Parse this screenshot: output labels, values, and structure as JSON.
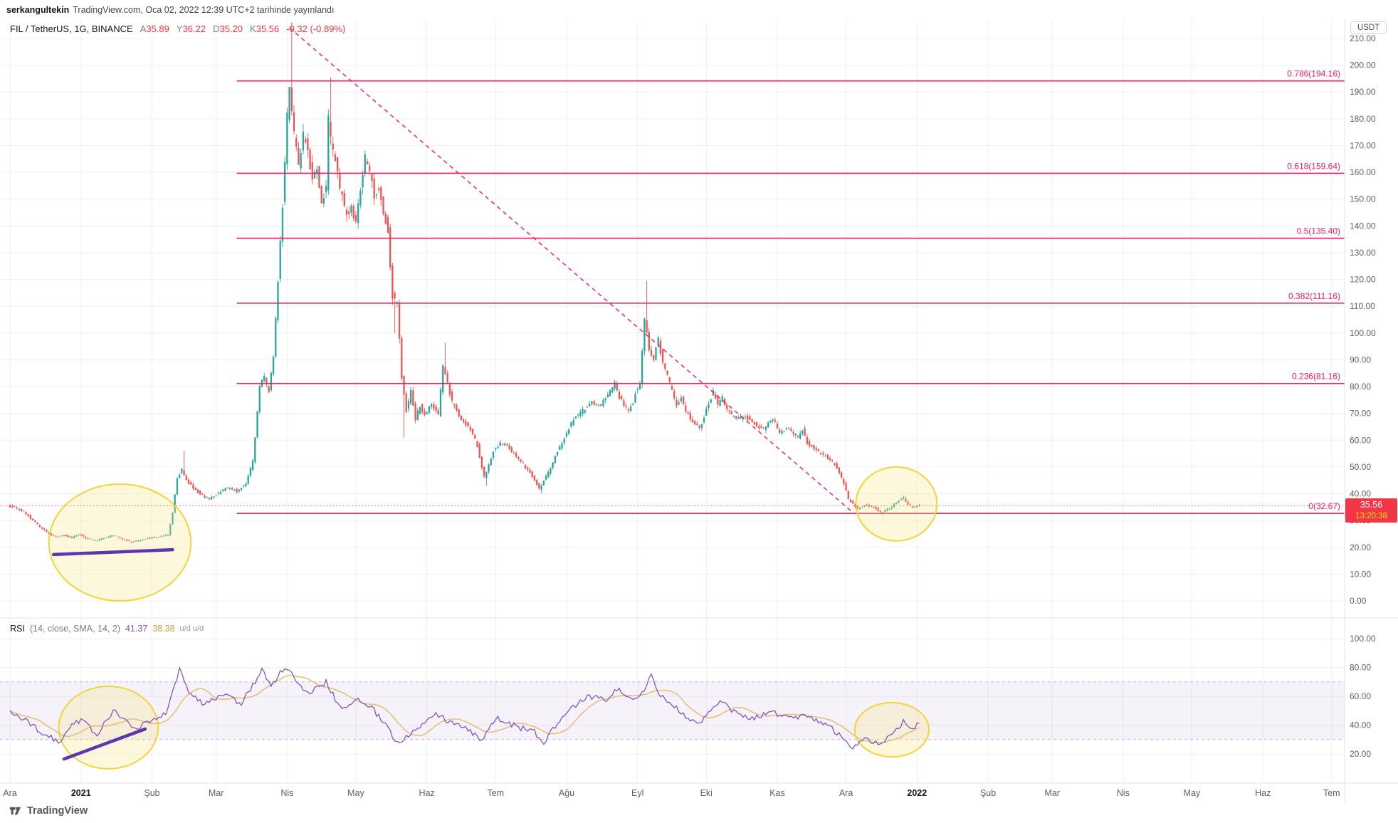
{
  "topbar": {
    "username": "serkangultekin",
    "publish_text": "TradingView.com, Oca 02, 2022 12:39 UTC+2 tarihinde yayınlandı"
  },
  "legend": {
    "symbol_title": "FIL / TetherUS, 1G, BINANCE",
    "o_label": "A",
    "o": "35.89",
    "h_label": "Y",
    "h": "36.22",
    "l_label": "D",
    "l": "35.20",
    "c_label": "K",
    "c": "35.56",
    "change": "-0.32 (-0.89%)"
  },
  "price_axis": {
    "currency_badge": "USDT",
    "last_price": "35.56",
    "countdown": "13:20:38"
  },
  "rsi_legend": {
    "title": "RSI",
    "params": "(14, close, SMA, 14, 2)",
    "value": "41.37",
    "ma_value": "38.38",
    "extra": "u/d  u/d"
  },
  "footer": {
    "brand": "TradingView"
  },
  "colors": {
    "up": "#26a69a",
    "down": "#ef5350",
    "fib": "#e91e63",
    "badge": "#f23645",
    "countdown": "#ffe70a",
    "ellipse_stroke": "#f2d43c",
    "ellipse_fill": "rgba(249,231,130,0.28)",
    "purple": "#5d35ae",
    "rsi_line": "#7e57c2",
    "rsi_ma": "#e5c07b",
    "rsi_band_fill": "rgba(126,87,194,0.08)",
    "rsi_band_line": "rgba(126,87,194,0.45)",
    "grid": "rgba(42,46,57,0.07)",
    "sep": "#e0e3eb",
    "axis_text": "#5d606b",
    "year_text": "#131722"
  },
  "chart_data": {
    "type": "candlestick",
    "title": "FIL / TetherUS, 1G, BINANCE",
    "ylabel": "USDT",
    "ylim": [
      0,
      210
    ],
    "y_tick_step": 10,
    "grid": true,
    "months": [
      {
        "label": "Ara",
        "day": 0
      },
      {
        "label": "2021",
        "day": 31,
        "year": true
      },
      {
        "label": "Şub",
        "day": 62
      },
      {
        "label": "Mar",
        "day": 90
      },
      {
        "label": "Nis",
        "day": 121
      },
      {
        "label": "May",
        "day": 151
      },
      {
        "label": "Haz",
        "day": 182
      },
      {
        "label": "Tem",
        "day": 212
      },
      {
        "label": "Ağu",
        "day": 243
      },
      {
        "label": "Eyl",
        "day": 274
      },
      {
        "label": "Eki",
        "day": 304
      },
      {
        "label": "Kas",
        "day": 335
      },
      {
        "label": "Ara",
        "day": 365
      },
      {
        "label": "2022",
        "day": 396,
        "year": true
      },
      {
        "label": "Şub",
        "day": 427
      },
      {
        "label": "Mar",
        "day": 455
      },
      {
        "label": "Nis",
        "day": 486
      },
      {
        "label": "May",
        "day": 516
      },
      {
        "label": "Haz",
        "day": 547
      },
      {
        "label": "Tem",
        "day": 577
      }
    ],
    "days_total": 397,
    "last_candle": {
      "o": 35.89,
      "h": 36.22,
      "l": 35.2,
      "c": 35.56
    },
    "price_path_anchors": [
      [
        0,
        35.5
      ],
      [
        4,
        34.5
      ],
      [
        7,
        33.5
      ],
      [
        11,
        30
      ],
      [
        15,
        27
      ],
      [
        18,
        25
      ],
      [
        21,
        24
      ],
      [
        25,
        24.5
      ],
      [
        28,
        23.5
      ],
      [
        31,
        25
      ],
      [
        34,
        23.5
      ],
      [
        38,
        22.5
      ],
      [
        42,
        23.5
      ],
      [
        46,
        24.5
      ],
      [
        50,
        23
      ],
      [
        54,
        22
      ],
      [
        58,
        22.8
      ],
      [
        62,
        23.5
      ],
      [
        66,
        24
      ],
      [
        70,
        24.5
      ],
      [
        72,
        33
      ],
      [
        74,
        46
      ],
      [
        76,
        49
      ],
      [
        78,
        45
      ],
      [
        80,
        43
      ],
      [
        84,
        40
      ],
      [
        88,
        38
      ],
      [
        92,
        40
      ],
      [
        96,
        42.5
      ],
      [
        100,
        41
      ],
      [
        104,
        44
      ],
      [
        107,
        52
      ],
      [
        108,
        61
      ],
      [
        110,
        80
      ],
      [
        112,
        84
      ],
      [
        114,
        78
      ],
      [
        116,
        91
      ],
      [
        118,
        120
      ],
      [
        120,
        148
      ],
      [
        122,
        181
      ],
      [
        123,
        192
      ],
      [
        125,
        174
      ],
      [
        127,
        163
      ],
      [
        129,
        174
      ],
      [
        131,
        168
      ],
      [
        133,
        158
      ],
      [
        135,
        161
      ],
      [
        137,
        148
      ],
      [
        139,
        154
      ],
      [
        140,
        180
      ],
      [
        141,
        172
      ],
      [
        143,
        164
      ],
      [
        145,
        154
      ],
      [
        148,
        144
      ],
      [
        150,
        148
      ],
      [
        152,
        141
      ],
      [
        154,
        154
      ],
      [
        156,
        166
      ],
      [
        158,
        161
      ],
      [
        160,
        151
      ],
      [
        162,
        154
      ],
      [
        164,
        146
      ],
      [
        166,
        138
      ],
      [
        168,
        114
      ],
      [
        170,
        111
      ],
      [
        172,
        84
      ],
      [
        174,
        71
      ],
      [
        176,
        78
      ],
      [
        178,
        68
      ],
      [
        180,
        73
      ],
      [
        182,
        69
      ],
      [
        185,
        74
      ],
      [
        188,
        69
      ],
      [
        190,
        88
      ],
      [
        192,
        81
      ],
      [
        194,
        74
      ],
      [
        198,
        68
      ],
      [
        202,
        64
      ],
      [
        205,
        58
      ],
      [
        208,
        46
      ],
      [
        210,
        51
      ],
      [
        212,
        56
      ],
      [
        215,
        59
      ],
      [
        218,
        58
      ],
      [
        220,
        56
      ],
      [
        222,
        54
      ],
      [
        225,
        51
      ],
      [
        228,
        48
      ],
      [
        232,
        42
      ],
      [
        236,
        48
      ],
      [
        239,
        54
      ],
      [
        243,
        61
      ],
      [
        247,
        68
      ],
      [
        251,
        71
      ],
      [
        255,
        74
      ],
      [
        259,
        73
      ],
      [
        263,
        78
      ],
      [
        265,
        81
      ],
      [
        267,
        76
      ],
      [
        271,
        71
      ],
      [
        273,
        74
      ],
      [
        274,
        78
      ],
      [
        276,
        81
      ],
      [
        278,
        105
      ],
      [
        280,
        94
      ],
      [
        282,
        91
      ],
      [
        284,
        98
      ],
      [
        286,
        88
      ],
      [
        288,
        84
      ],
      [
        290,
        78
      ],
      [
        292,
        73
      ],
      [
        294,
        76
      ],
      [
        296,
        71
      ],
      [
        298,
        68
      ],
      [
        302,
        64
      ],
      [
        304,
        69
      ],
      [
        306,
        74
      ],
      [
        308,
        78
      ],
      [
        310,
        73
      ],
      [
        312,
        76
      ],
      [
        314,
        71
      ],
      [
        318,
        68
      ],
      [
        322,
        69
      ],
      [
        326,
        66
      ],
      [
        330,
        64
      ],
      [
        334,
        68
      ],
      [
        337,
        63
      ],
      [
        341,
        64
      ],
      [
        345,
        61
      ],
      [
        347,
        64
      ],
      [
        349,
        59
      ],
      [
        353,
        56
      ],
      [
        357,
        54
      ],
      [
        361,
        51
      ],
      [
        365,
        44
      ],
      [
        367,
        38
      ],
      [
        369,
        36
      ],
      [
        371,
        34.5
      ],
      [
        375,
        36
      ],
      [
        379,
        34.5
      ],
      [
        381,
        33
      ],
      [
        385,
        34.5
      ],
      [
        389,
        37.5
      ],
      [
        391,
        38.5
      ],
      [
        393,
        36
      ],
      [
        395,
        35
      ],
      [
        397,
        35.56
      ]
    ],
    "wick_high_overrides": {
      "76": 56,
      "123": 216,
      "140": 195.5,
      "190": 96.5,
      "278": 119.5
    },
    "wick_low_overrides": {
      "168": 100,
      "172": 61,
      "208": 43,
      "232": 40.2,
      "381": 31.8
    },
    "fib_start_day": 99,
    "fib_levels": [
      {
        "label": "0.786(194.16)",
        "price": 194.16
      },
      {
        "label": "0.618(159.64)",
        "price": 159.64
      },
      {
        "label": "0.5(135.40)",
        "price": 135.4
      },
      {
        "label": "0.382(111.16)",
        "price": 111.16
      },
      {
        "label": "0.236(81.16)",
        "price": 81.16
      },
      {
        "label": "0(32.67)",
        "price": 32.67
      }
    ],
    "trend_dashed": {
      "from": {
        "day": 122,
        "price": 214
      },
      "to": {
        "day": 368,
        "price": 33
      }
    },
    "ellipses": [
      {
        "pane": "price",
        "day": 48,
        "center": 21.8,
        "rx_days": 31,
        "ry_val": 21.8
      },
      {
        "pane": "price",
        "day": 387,
        "center": 36.2,
        "rx_days": 17.7,
        "ry_val": 13.8
      },
      {
        "pane": "rsi",
        "day": 43,
        "center": 38.3,
        "rx_days": 21.7,
        "ry_val": 28.6
      },
      {
        "pane": "rsi",
        "day": 385,
        "center": 36.8,
        "rx_days": 16.2,
        "ry_val": 18.8
      }
    ],
    "trendlines": [
      {
        "pane": "price",
        "from": [
          19,
          17.3
        ],
        "to": [
          71,
          19.1
        ]
      },
      {
        "pane": "rsi",
        "from": [
          23.6,
          16.5
        ],
        "to": [
          59,
          37.3
        ]
      }
    ],
    "rsi": {
      "ticks": [
        20,
        40,
        60,
        80,
        100
      ],
      "band": [
        30,
        70
      ],
      "ma_window": 14,
      "last_value": 41.37,
      "ma_last_value": 38.38,
      "anchors": [
        [
          0,
          50
        ],
        [
          8,
          42
        ],
        [
          14,
          35
        ],
        [
          21,
          28
        ],
        [
          26,
          38
        ],
        [
          32,
          45
        ],
        [
          38,
          32
        ],
        [
          42,
          44
        ],
        [
          46,
          50
        ],
        [
          54,
          38
        ],
        [
          58,
          40
        ],
        [
          62,
          42
        ],
        [
          68,
          48
        ],
        [
          72,
          70
        ],
        [
          74,
          78
        ],
        [
          79,
          60
        ],
        [
          85,
          55
        ],
        [
          93,
          62
        ],
        [
          101,
          55
        ],
        [
          107,
          70
        ],
        [
          110,
          78
        ],
        [
          114,
          68
        ],
        [
          120,
          80
        ],
        [
          124,
          74
        ],
        [
          130,
          62
        ],
        [
          136,
          68
        ],
        [
          138,
          70
        ],
        [
          142,
          58
        ],
        [
          145,
          50
        ],
        [
          149,
          55
        ],
        [
          153,
          58
        ],
        [
          159,
          50
        ],
        [
          165,
          38
        ],
        [
          169,
          27
        ],
        [
          175,
          35
        ],
        [
          180,
          40
        ],
        [
          186,
          48
        ],
        [
          192,
          42
        ],
        [
          198,
          38
        ],
        [
          206,
          30
        ],
        [
          212,
          45
        ],
        [
          217,
          42
        ],
        [
          223,
          38
        ],
        [
          229,
          35
        ],
        [
          233,
          28
        ],
        [
          239,
          42
        ],
        [
          245,
          52
        ],
        [
          252,
          60
        ],
        [
          260,
          58
        ],
        [
          266,
          65
        ],
        [
          270,
          58
        ],
        [
          276,
          62
        ],
        [
          280,
          75
        ],
        [
          284,
          60
        ],
        [
          289,
          55
        ],
        [
          295,
          45
        ],
        [
          301,
          40
        ],
        [
          307,
          52
        ],
        [
          311,
          56
        ],
        [
          317,
          48
        ],
        [
          325,
          45
        ],
        [
          332,
          50
        ],
        [
          340,
          44
        ],
        [
          348,
          47
        ],
        [
          356,
          40
        ],
        [
          363,
          33
        ],
        [
          367,
          24
        ],
        [
          373,
          30
        ],
        [
          379,
          27
        ],
        [
          385,
          33
        ],
        [
          390,
          42
        ],
        [
          394,
          37
        ],
        [
          397,
          41.37
        ]
      ]
    }
  }
}
